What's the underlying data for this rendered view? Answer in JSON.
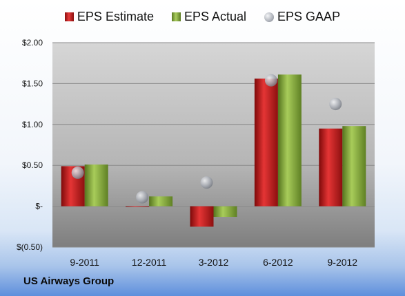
{
  "company": "US Airways Group",
  "chart_data": {
    "type": "bar",
    "categories": [
      "9-2011",
      "12-2011",
      "3-2012",
      "6-2012",
      "9-2012"
    ],
    "series": [
      {
        "name": "EPS Estimate",
        "type": "bar",
        "color": "#cc2222",
        "values": [
          0.49,
          0.0,
          -0.25,
          1.56,
          0.95
        ]
      },
      {
        "name": "EPS Actual",
        "type": "bar",
        "color": "#8fb04a",
        "values": [
          0.51,
          0.12,
          -0.13,
          1.61,
          0.98
        ]
      },
      {
        "name": "EPS GAAP",
        "type": "scatter",
        "color": "#b8bcc4",
        "values": [
          0.41,
          0.11,
          0.29,
          1.54,
          1.25
        ]
      }
    ],
    "ytick_values": [
      -0.5,
      0,
      0.5,
      1.0,
      1.5,
      2.0
    ],
    "ytick_labels": [
      "$(0.50)",
      "$-",
      "$0.50",
      "$1.00",
      "$1.50",
      "$2.00"
    ],
    "ylim": [
      -0.5,
      2.0
    ],
    "grid": true,
    "legend_position": "top"
  }
}
